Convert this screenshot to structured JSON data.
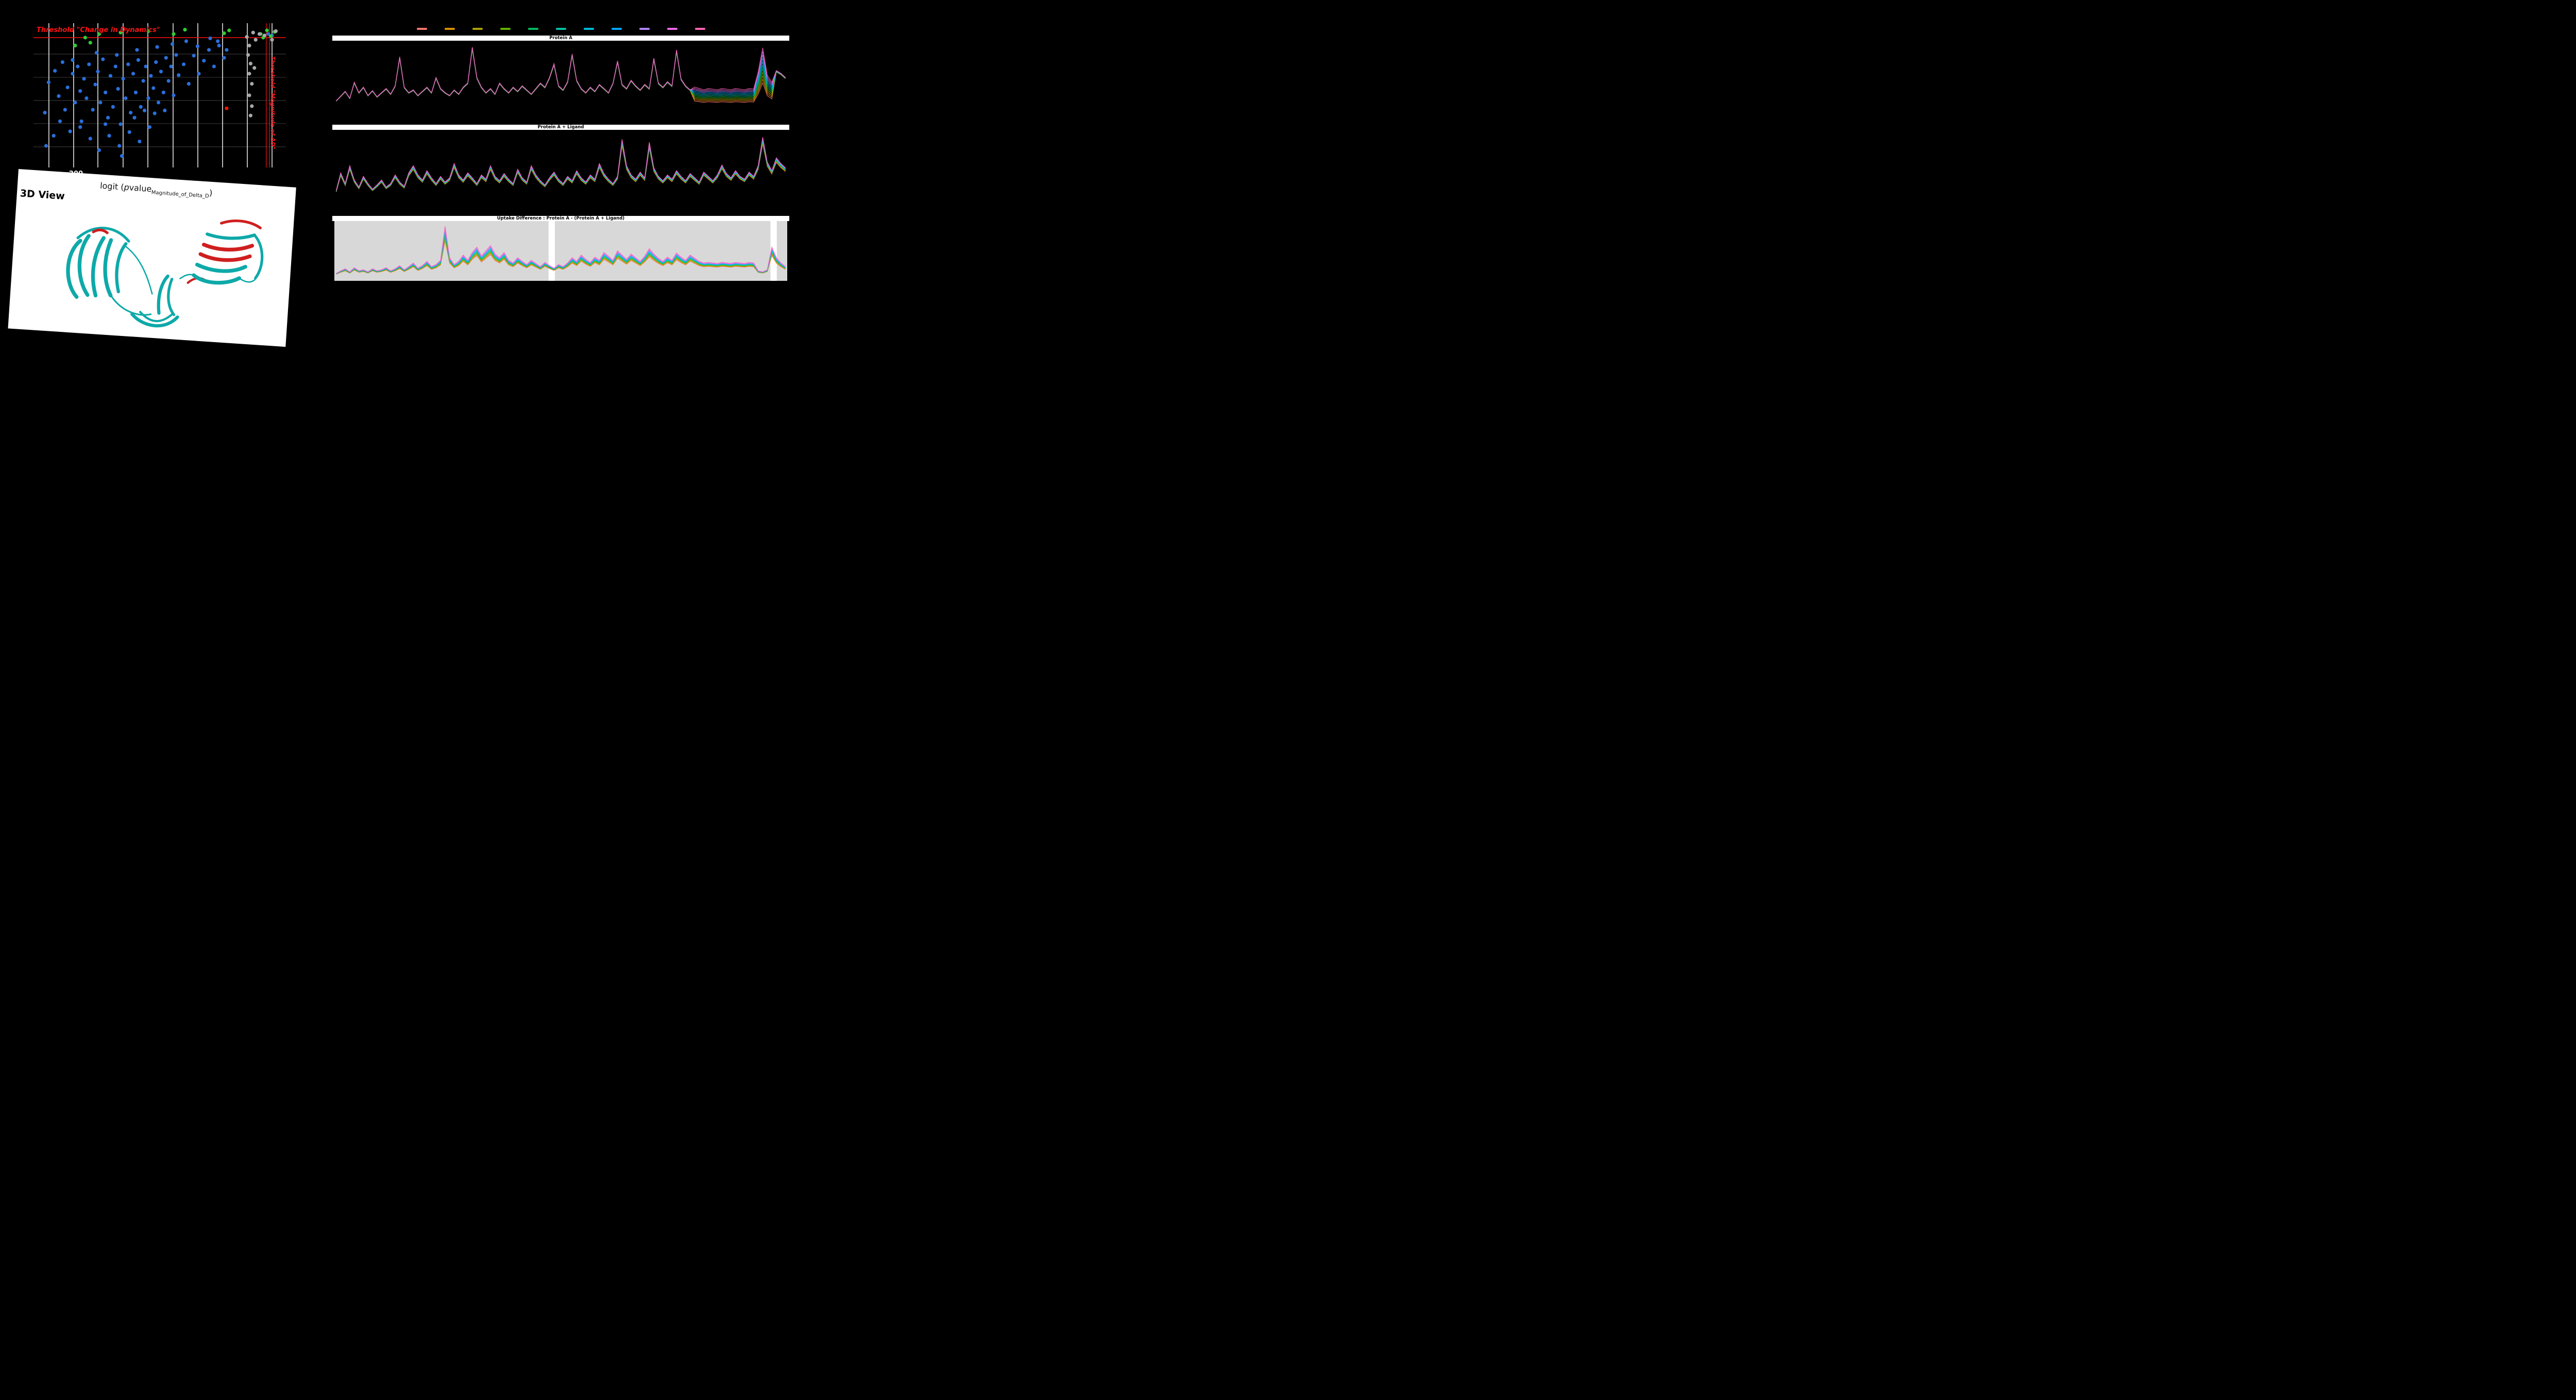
{
  "page": {
    "background": "#000000"
  },
  "volcano": {
    "title": "Threshold \"Change in Dynamics\"",
    "right_label": "Threshold \"Magnitude of ΔD\"",
    "x_tick": "−200",
    "axis_label": {
      "prefix": "logit (",
      "p_italic": "p",
      "value": "value",
      "subscript": "Magnitude_of_Delta_D",
      "close": ")"
    },
    "colors": {
      "b": "#2a6fdb",
      "g": "#33cc33",
      "y": "#a9a9a9",
      "r": "#ee1407",
      "threshold": "#ff1111",
      "grid_major": "#ffffff",
      "grid_minor": "#9a9a9a"
    }
  },
  "view3d": {
    "title": "3D View",
    "ribbon_teal": "#0ea9a9",
    "ribbon_red": "#cf1f1f"
  },
  "legend": {
    "colors": [
      "#F8766D",
      "#DB8E00",
      "#AEA200",
      "#64B200",
      "#00BD5C",
      "#00C1A7",
      "#00BADE",
      "#00A6FF",
      "#B385FF",
      "#EF67EB",
      "#FF63B6"
    ]
  },
  "chart_data": [
    {
      "type": "scatter",
      "title": "Threshold \"Change in Dynamics\"",
      "xlabel": "logit (pvalue_Magnitude_of_Delta_D)",
      "x_ticks": [
        "−200"
      ],
      "gridlines_x": [
        0.061,
        0.159,
        0.255,
        0.355,
        0.453,
        0.553,
        0.651,
        0.749,
        0.847,
        0.945
      ],
      "gridlines_y": [
        0.214,
        0.375,
        0.536,
        0.696,
        0.857
      ],
      "threshold_y": 0.1,
      "threshold_x": [
        0.922,
        0.935
      ],
      "points": [
        [
          0.045,
          0.62,
          "b"
        ],
        [
          0.06,
          0.41,
          "b"
        ],
        [
          0.085,
          0.33,
          "b"
        ],
        [
          0.1,
          0.505,
          "b"
        ],
        [
          0.115,
          0.27,
          "b"
        ],
        [
          0.125,
          0.6,
          "b"
        ],
        [
          0.135,
          0.445,
          "b"
        ],
        [
          0.145,
          0.75,
          "b"
        ],
        [
          0.155,
          0.35,
          "b"
        ],
        [
          0.165,
          0.55,
          "b"
        ],
        [
          0.175,
          0.3,
          "b"
        ],
        [
          0.185,
          0.47,
          "b"
        ],
        [
          0.19,
          0.68,
          "b"
        ],
        [
          0.2,
          0.385,
          "b"
        ],
        [
          0.21,
          0.52,
          "b"
        ],
        [
          0.22,
          0.285,
          "b"
        ],
        [
          0.235,
          0.6,
          "b"
        ],
        [
          0.245,
          0.425,
          "b"
        ],
        [
          0.255,
          0.335,
          "b"
        ],
        [
          0.265,
          0.55,
          "b"
        ],
        [
          0.275,
          0.25,
          "b"
        ],
        [
          0.285,
          0.48,
          "b"
        ],
        [
          0.295,
          0.655,
          "b"
        ],
        [
          0.305,
          0.365,
          "b"
        ],
        [
          0.315,
          0.58,
          "b"
        ],
        [
          0.325,
          0.3,
          "b"
        ],
        [
          0.335,
          0.455,
          "b"
        ],
        [
          0.345,
          0.7,
          "b"
        ],
        [
          0.355,
          0.385,
          "b"
        ],
        [
          0.365,
          0.52,
          "b"
        ],
        [
          0.375,
          0.285,
          "b"
        ],
        [
          0.385,
          0.62,
          "b"
        ],
        [
          0.395,
          0.35,
          "b"
        ],
        [
          0.405,
          0.48,
          "b"
        ],
        [
          0.415,
          0.255,
          "b"
        ],
        [
          0.425,
          0.58,
          "b"
        ],
        [
          0.435,
          0.4,
          "b"
        ],
        [
          0.445,
          0.3,
          "b"
        ],
        [
          0.455,
          0.52,
          "b"
        ],
        [
          0.465,
          0.365,
          "b"
        ],
        [
          0.475,
          0.45,
          "b"
        ],
        [
          0.485,
          0.27,
          "b"
        ],
        [
          0.495,
          0.55,
          "b"
        ],
        [
          0.505,
          0.335,
          "b"
        ],
        [
          0.515,
          0.48,
          "b"
        ],
        [
          0.525,
          0.24,
          "b"
        ],
        [
          0.535,
          0.4,
          "b"
        ],
        [
          0.545,
          0.3,
          "b"
        ],
        [
          0.555,
          0.5,
          "b"
        ],
        [
          0.565,
          0.22,
          "b"
        ],
        [
          0.575,
          0.36,
          "b"
        ],
        [
          0.595,
          0.285,
          "b"
        ],
        [
          0.615,
          0.42,
          "b"
        ],
        [
          0.635,
          0.225,
          "b"
        ],
        [
          0.655,
          0.35,
          "b"
        ],
        [
          0.675,
          0.26,
          "b"
        ],
        [
          0.695,
          0.185,
          "b"
        ],
        [
          0.715,
          0.3,
          "b"
        ],
        [
          0.735,
          0.155,
          "b"
        ],
        [
          0.755,
          0.24,
          "b"
        ],
        [
          0.225,
          0.8,
          "b"
        ],
        [
          0.26,
          0.88,
          "b"
        ],
        [
          0.3,
          0.78,
          "b"
        ],
        [
          0.34,
          0.85,
          "b"
        ],
        [
          0.38,
          0.755,
          "b"
        ],
        [
          0.185,
          0.72,
          "b"
        ],
        [
          0.42,
          0.82,
          "b"
        ],
        [
          0.105,
          0.68,
          "b"
        ],
        [
          0.46,
          0.72,
          "b"
        ],
        [
          0.35,
          0.92,
          "b"
        ],
        [
          0.285,
          0.7,
          "b"
        ],
        [
          0.4,
          0.655,
          "b"
        ],
        [
          0.44,
          0.605,
          "b"
        ],
        [
          0.48,
          0.625,
          "b"
        ],
        [
          0.52,
          0.605,
          "b"
        ],
        [
          0.155,
          0.255,
          "b"
        ],
        [
          0.25,
          0.205,
          "b"
        ],
        [
          0.33,
          0.22,
          "b"
        ],
        [
          0.41,
          0.185,
          "b"
        ],
        [
          0.49,
          0.165,
          "b"
        ],
        [
          0.55,
          0.145,
          "b"
        ],
        [
          0.605,
          0.125,
          "b"
        ],
        [
          0.65,
          0.16,
          "b"
        ],
        [
          0.7,
          0.105,
          "b"
        ],
        [
          0.73,
          0.125,
          "b"
        ],
        [
          0.05,
          0.85,
          "b"
        ],
        [
          0.08,
          0.78,
          "b"
        ],
        [
          0.765,
          0.185,
          "b"
        ],
        [
          0.93,
          0.075,
          "b"
        ],
        [
          0.945,
          0.085,
          "b"
        ],
        [
          0.165,
          0.155,
          "g"
        ],
        [
          0.205,
          0.1,
          "g"
        ],
        [
          0.225,
          0.135,
          "g"
        ],
        [
          0.26,
          0.075,
          "g"
        ],
        [
          0.345,
          0.065,
          "g"
        ],
        [
          0.455,
          0.055,
          "g"
        ],
        [
          0.555,
          0.075,
          "g"
        ],
        [
          0.6,
          0.045,
          "g"
        ],
        [
          0.755,
          0.07,
          "g"
        ],
        [
          0.775,
          0.05,
          "g"
        ],
        [
          0.9,
          0.075,
          "g"
        ],
        [
          0.925,
          0.05,
          "g"
        ],
        [
          0.94,
          0.09,
          "g"
        ],
        [
          0.955,
          0.06,
          "g"
        ],
        [
          0.91,
          0.1,
          "g"
        ],
        [
          0.845,
          0.095,
          "y"
        ],
        [
          0.855,
          0.155,
          "y"
        ],
        [
          0.85,
          0.22,
          "y"
        ],
        [
          0.86,
          0.28,
          "y"
        ],
        [
          0.855,
          0.35,
          "y"
        ],
        [
          0.865,
          0.42,
          "y"
        ],
        [
          0.855,
          0.5,
          "y"
        ],
        [
          0.865,
          0.575,
          "y"
        ],
        [
          0.86,
          0.64,
          "y"
        ],
        [
          0.875,
          0.31,
          "y"
        ],
        [
          0.88,
          0.115,
          "y"
        ],
        [
          0.87,
          0.065,
          "y"
        ],
        [
          0.895,
          0.075,
          "y"
        ],
        [
          0.915,
          0.085,
          "y"
        ],
        [
          0.96,
          0.055,
          "y"
        ],
        [
          0.945,
          0.115,
          "y"
        ],
        [
          0.765,
          0.59,
          "r"
        ]
      ]
    },
    {
      "type": "line",
      "title": "Protein A",
      "spread": 0.035,
      "fan": {
        "start": 0.79,
        "end": 0.975,
        "amount": 0.5
      },
      "profile": [
        0.18,
        0.25,
        0.32,
        0.22,
        0.45,
        0.3,
        0.38,
        0.26,
        0.33,
        0.24,
        0.3,
        0.36,
        0.28,
        0.4,
        0.82,
        0.38,
        0.3,
        0.34,
        0.26,
        0.32,
        0.38,
        0.3,
        0.52,
        0.36,
        0.3,
        0.26,
        0.34,
        0.28,
        0.38,
        0.44,
        0.96,
        0.52,
        0.38,
        0.3,
        0.36,
        0.28,
        0.44,
        0.36,
        0.3,
        0.38,
        0.32,
        0.4,
        0.34,
        0.28,
        0.36,
        0.44,
        0.38,
        0.52,
        0.72,
        0.4,
        0.34,
        0.46,
        0.86,
        0.48,
        0.36,
        0.3,
        0.38,
        0.32,
        0.42,
        0.36,
        0.3,
        0.44,
        0.76,
        0.42,
        0.36,
        0.48,
        0.4,
        0.34,
        0.42,
        0.36,
        0.8,
        0.44,
        0.38,
        0.46,
        0.4,
        0.92,
        0.5,
        0.4,
        0.34,
        0.38,
        0.36,
        0.34,
        0.36,
        0.35,
        0.34,
        0.36,
        0.35,
        0.34,
        0.36,
        0.35,
        0.34,
        0.36,
        0.35,
        0.6,
        0.95,
        0.55,
        0.45,
        0.62,
        0.58,
        0.52
      ]
    },
    {
      "type": "line",
      "title": "Protein A + Ligand",
      "spread": 0.1,
      "profile": [
        0.2,
        0.45,
        0.3,
        0.55,
        0.35,
        0.25,
        0.4,
        0.3,
        0.22,
        0.28,
        0.35,
        0.25,
        0.3,
        0.42,
        0.32,
        0.26,
        0.45,
        0.55,
        0.42,
        0.35,
        0.48,
        0.38,
        0.3,
        0.4,
        0.32,
        0.38,
        0.58,
        0.42,
        0.35,
        0.45,
        0.38,
        0.3,
        0.42,
        0.36,
        0.55,
        0.4,
        0.34,
        0.44,
        0.36,
        0.3,
        0.5,
        0.38,
        0.32,
        0.55,
        0.42,
        0.34,
        0.28,
        0.38,
        0.46,
        0.36,
        0.3,
        0.4,
        0.34,
        0.48,
        0.38,
        0.32,
        0.42,
        0.36,
        0.58,
        0.44,
        0.36,
        0.3,
        0.4,
        0.92,
        0.55,
        0.42,
        0.36,
        0.46,
        0.38,
        0.88,
        0.52,
        0.4,
        0.34,
        0.42,
        0.36,
        0.48,
        0.4,
        0.34,
        0.44,
        0.38,
        0.32,
        0.46,
        0.4,
        0.34,
        0.42,
        0.56,
        0.44,
        0.38,
        0.48,
        0.4,
        0.36,
        0.46,
        0.4,
        0.55,
        0.95,
        0.6,
        0.48,
        0.66,
        0.58,
        0.52
      ]
    },
    {
      "type": "line",
      "title": "Uptake Difference : Protein A - (Protein A + Ligand)",
      "spread": 0.3,
      "bg": {
        "color": "#d8d8d8",
        "paper": "#ffffff",
        "regions": [
          [
            0,
            0.473
          ],
          [
            0.487,
            0.963
          ],
          [
            0.977,
            1
          ]
        ]
      },
      "profile": [
        0.05,
        0.1,
        0.14,
        0.08,
        0.16,
        0.1,
        0.12,
        0.08,
        0.14,
        0.1,
        0.12,
        0.16,
        0.1,
        0.14,
        0.2,
        0.12,
        0.18,
        0.25,
        0.15,
        0.2,
        0.28,
        0.18,
        0.22,
        0.3,
        0.95,
        0.35,
        0.22,
        0.28,
        0.4,
        0.3,
        0.45,
        0.55,
        0.38,
        0.48,
        0.58,
        0.42,
        0.35,
        0.45,
        0.3,
        0.25,
        0.35,
        0.28,
        0.22,
        0.3,
        0.24,
        0.18,
        0.26,
        0.2,
        0.15,
        0.22,
        0.18,
        0.25,
        0.35,
        0.28,
        0.4,
        0.32,
        0.26,
        0.36,
        0.3,
        0.45,
        0.38,
        0.3,
        0.48,
        0.4,
        0.32,
        0.42,
        0.35,
        0.28,
        0.38,
        0.52,
        0.42,
        0.34,
        0.28,
        0.36,
        0.3,
        0.44,
        0.36,
        0.3,
        0.4,
        0.34,
        0.28,
        0.25,
        0.26,
        0.25,
        0.24,
        0.26,
        0.25,
        0.24,
        0.26,
        0.25,
        0.24,
        0.26,
        0.25,
        0.1,
        0.08,
        0.12,
        0.55,
        0.35,
        0.25,
        0.18
      ]
    }
  ]
}
